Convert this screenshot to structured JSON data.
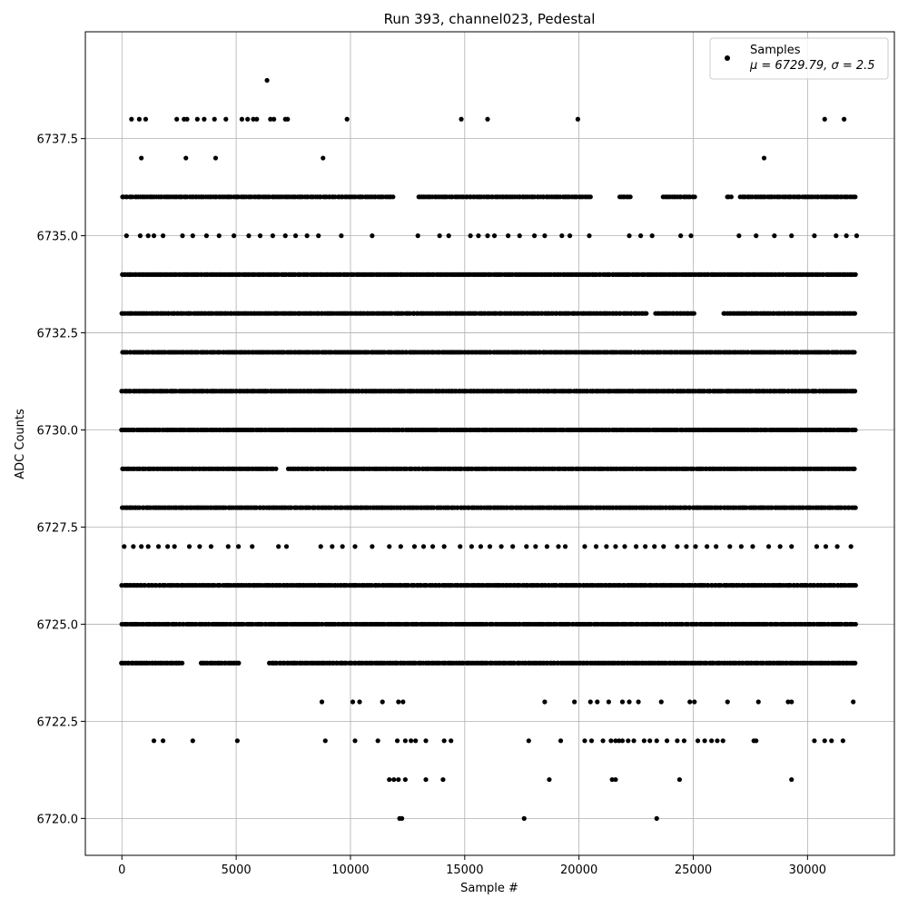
{
  "chart_data": {
    "type": "scatter",
    "title": "Run 393, channel023, Pedestal",
    "xlabel": "Sample #",
    "ylabel": "ADC Counts",
    "xlim": [
      -1600,
      33800
    ],
    "ylim": [
      6719.05,
      6740.25
    ],
    "x_ticks": [
      0,
      5000,
      10000,
      15000,
      20000,
      25000,
      30000
    ],
    "y_ticks": [
      6720.0,
      6722.5,
      6725.0,
      6727.5,
      6730.0,
      6732.5,
      6735.0,
      6737.5
    ],
    "grid": true,
    "legend": {
      "placement": "top-right",
      "series_name": "Samples",
      "stats": "μ = 6729.79, σ = 2.5"
    },
    "marker_color": "#000000",
    "x_range": [
      0,
      32150
    ],
    "series": [
      {
        "name": "Samples",
        "level": 6739,
        "x": [
          6350
        ]
      },
      {
        "name": "Samples",
        "level": 6738,
        "x": [
          420,
          760,
          1040,
          2400,
          2720,
          2850,
          3300,
          3600,
          4050,
          4550,
          5250,
          5500,
          5750,
          5900,
          6500,
          6650,
          7150,
          7250,
          9850,
          14850,
          16000,
          19950,
          30750,
          31600
        ]
      },
      {
        "name": "Samples",
        "level": 6737,
        "x": [
          850,
          2800,
          4100,
          8800,
          28100
        ]
      },
      {
        "name": "Samples",
        "level": 6736,
        "dense_from": 0,
        "dense_to": 32150,
        "gaps": [
          [
            11900,
            12900
          ],
          [
            20500,
            21700
          ],
          [
            22300,
            23600
          ],
          [
            25100,
            26400
          ],
          [
            26700,
            27000
          ]
        ]
      },
      {
        "name": "Samples",
        "level": 6735,
        "x": [
          200,
          800,
          1150,
          1400,
          1800,
          2650,
          3100,
          3700,
          4250,
          4900,
          5550,
          6050,
          6600,
          7150,
          7600,
          8100,
          8600,
          9600,
          10950,
          12950,
          13900,
          14300,
          15250,
          15600,
          16000,
          16300,
          16900,
          17400,
          18050,
          18500,
          19250,
          19600,
          20450,
          22200,
          22700,
          23200,
          24450,
          24900,
          27000,
          27750,
          28550,
          29300,
          30300,
          31250,
          31700,
          32150
        ]
      },
      {
        "name": "Samples",
        "level": 6734,
        "dense_from": 0,
        "dense_to": 32150
      },
      {
        "name": "Samples",
        "level": 6733,
        "dense_from": 0,
        "dense_to": 32150,
        "gaps": [
          [
            23000,
            23300
          ],
          [
            25100,
            26300
          ]
        ]
      },
      {
        "name": "Samples",
        "level": 6732,
        "dense_from": 0,
        "dense_to": 32150
      },
      {
        "name": "Samples",
        "level": 6731,
        "dense_from": 0,
        "dense_to": 32150
      },
      {
        "name": "Samples",
        "level": 6730,
        "dense_from": 0,
        "dense_to": 32150
      },
      {
        "name": "Samples",
        "level": 6729,
        "dense_from": 0,
        "dense_to": 32150,
        "gaps": [
          [
            6800,
            7200
          ]
        ]
      },
      {
        "name": "Samples",
        "level": 6728,
        "dense_from": 0,
        "dense_to": 32150
      },
      {
        "name": "Samples",
        "level": 6727,
        "x": [
          100,
          500,
          850,
          1150,
          1600,
          2000,
          2300,
          2950,
          3400,
          3900,
          4650,
          5100,
          5700,
          6850,
          7200,
          8700,
          9200,
          9650,
          10200,
          10950,
          11700,
          12200,
          12800,
          13200,
          13600,
          14100,
          14800,
          15300,
          15700,
          16100,
          16600,
          17100,
          17700,
          18100,
          18600,
          19100,
          19400,
          20250,
          20750,
          21200,
          21600,
          22000,
          22500,
          22900,
          23300,
          23700,
          24300,
          24700,
          25100,
          25600,
          26000,
          26600,
          27100,
          27600,
          28300,
          28800,
          29300,
          30400,
          30800,
          31300,
          31900
        ]
      },
      {
        "name": "Samples",
        "level": 6726,
        "dense_from": 0,
        "dense_to": 32150
      },
      {
        "name": "Samples",
        "level": 6725,
        "dense_from": 0,
        "dense_to": 32150
      },
      {
        "name": "Samples",
        "level": 6724,
        "dense_from": 0,
        "dense_to": 32150,
        "gaps": [
          [
            2700,
            3400
          ],
          [
            5200,
            6400
          ]
        ]
      },
      {
        "name": "Samples",
        "level": 6723,
        "x": [
          8750,
          10100,
          10400,
          11400,
          12100,
          12300,
          18500,
          19800,
          20500,
          20800,
          21300,
          21900,
          22200,
          22600,
          23600,
          24850,
          25050,
          26500,
          27850,
          29150,
          29300,
          32000
        ]
      },
      {
        "name": "Samples",
        "level": 6722,
        "x": [
          1400,
          1800,
          3100,
          5050,
          8900,
          10200,
          11200,
          12050,
          12400,
          12650,
          12850,
          13300,
          14100,
          14400,
          17800,
          19200,
          20250,
          20550,
          21050,
          21400,
          21600,
          21750,
          21900,
          22150,
          22400,
          22850,
          23100,
          23400,
          23850,
          24300,
          24600,
          25200,
          25500,
          25800,
          26050,
          26300,
          27650,
          27750,
          30300,
          30750,
          31050,
          31550
        ]
      },
      {
        "name": "Samples",
        "level": 6721,
        "x": [
          11700,
          11900,
          12100,
          12400,
          13300,
          14050,
          18700,
          21450,
          21600,
          24400,
          29300
        ]
      },
      {
        "name": "Samples",
        "level": 6720,
        "x": [
          12150,
          12250,
          17600,
          23400
        ]
      }
    ]
  }
}
